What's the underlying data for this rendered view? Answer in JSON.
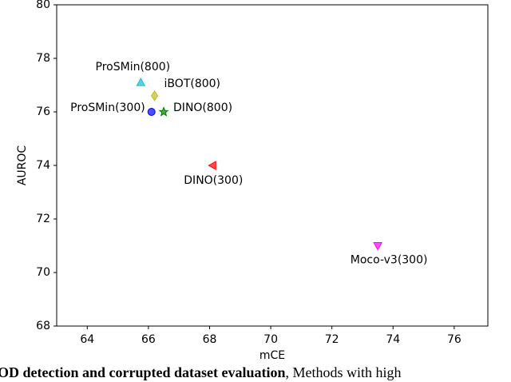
{
  "chart_data": {
    "type": "scatter",
    "x_label": "mCE",
    "y_label": "AUROC",
    "xlim": [
      63,
      77.1
    ],
    "ylim": [
      68,
      80
    ],
    "xticks": [
      64,
      66,
      68,
      70,
      72,
      74,
      76
    ],
    "yticks": [
      68,
      70,
      72,
      74,
      76,
      78,
      80
    ],
    "series": [
      {
        "name": "ProSMin(800)",
        "color": "#17becf",
        "marker": "triangle-up",
        "x": [
          65.75
        ],
        "values": [
          77.1
        ]
      },
      {
        "name": "iBOT(800)",
        "color": "#bcbd22",
        "marker": "diamond",
        "x": [
          66.2
        ],
        "values": [
          76.6
        ]
      },
      {
        "name": "ProSMin(300)",
        "color": "#0000ff",
        "marker": "circle",
        "x": [
          66.1
        ],
        "values": [
          76.0
        ]
      },
      {
        "name": "DINO(800)",
        "color": "#008000",
        "marker": "star",
        "x": [
          66.5
        ],
        "values": [
          76.0
        ]
      },
      {
        "name": "DINO(300)",
        "color": "#ff0000",
        "marker": "triangle-left",
        "x": [
          68.1
        ],
        "values": [
          74.0
        ]
      },
      {
        "name": "Moco-v3(300)",
        "color": "#ff00ff",
        "marker": "triangle-down",
        "x": [
          73.5
        ],
        "values": [
          71.0
        ]
      }
    ]
  },
  "caption": {
    "bold": "OD detection and corrupted dataset evaluation",
    "text": ", Methods with high"
  }
}
